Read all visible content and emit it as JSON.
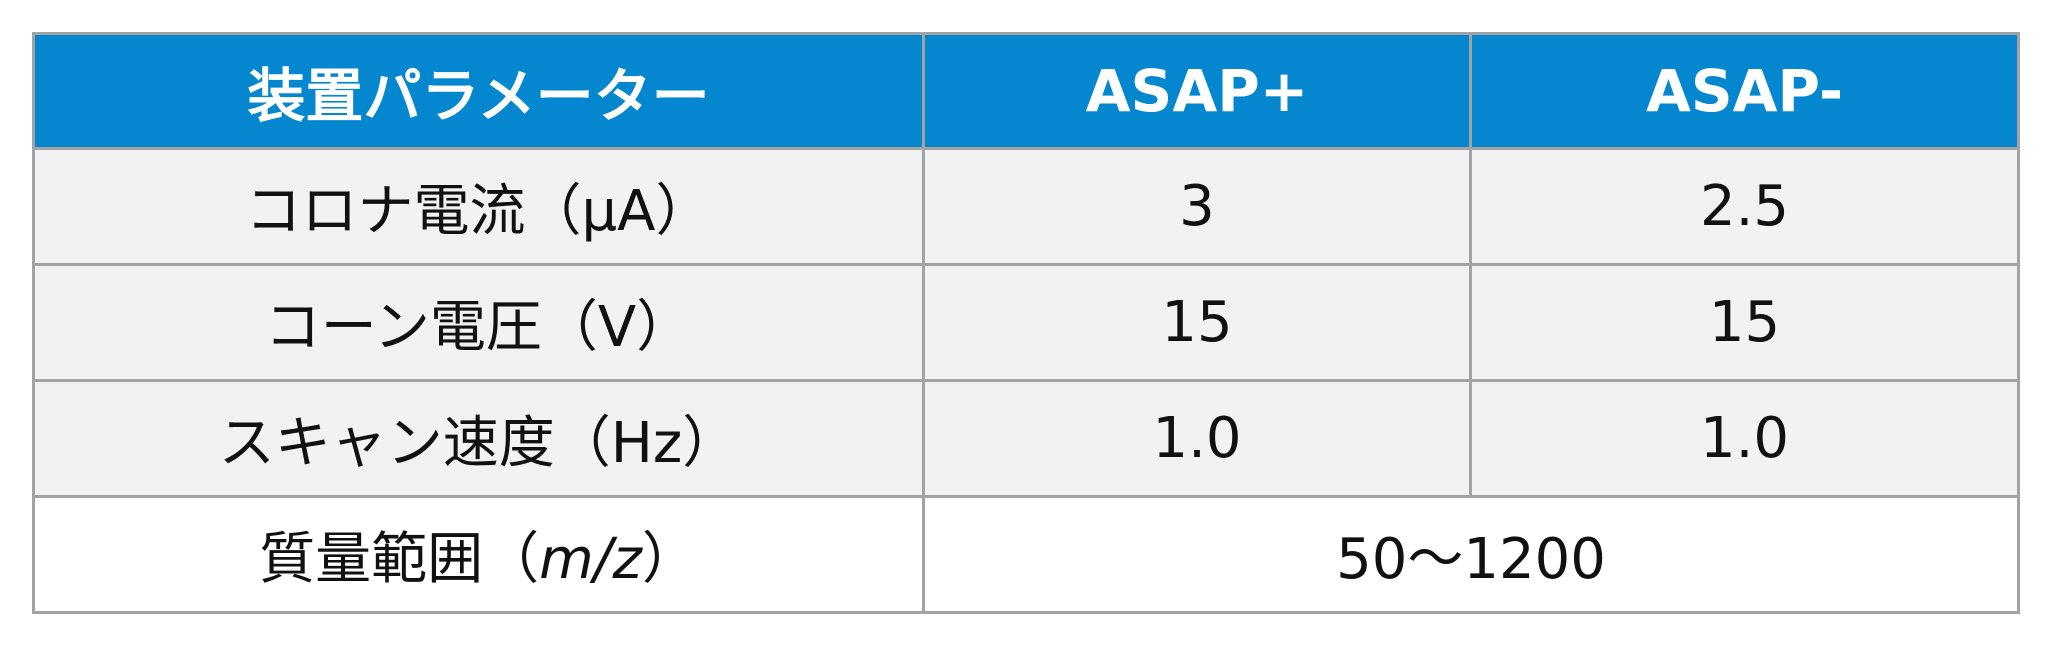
{
  "table": {
    "header": {
      "param": "装置パラメーター",
      "pos": "ASAP+",
      "neg": "ASAP-"
    },
    "rows": [
      {
        "label": "コロナ電流（μA）",
        "pos": "3",
        "neg": "2.5"
      },
      {
        "label": "コーン電圧（V）",
        "pos": "15",
        "neg": "15"
      },
      {
        "label": "スキャン速度（Hz）",
        "pos": "1.0",
        "neg": "1.0"
      }
    ],
    "mass_range": {
      "label_prefix": "質量範囲（",
      "label_unit": "m/z",
      "label_suffix": "）",
      "value": "50～1200"
    }
  },
  "colors": {
    "header_bg": "#0487cf",
    "header_text": "#ffffff",
    "row_shaded": "#f1f2f4",
    "border": "#a3a3a3"
  }
}
